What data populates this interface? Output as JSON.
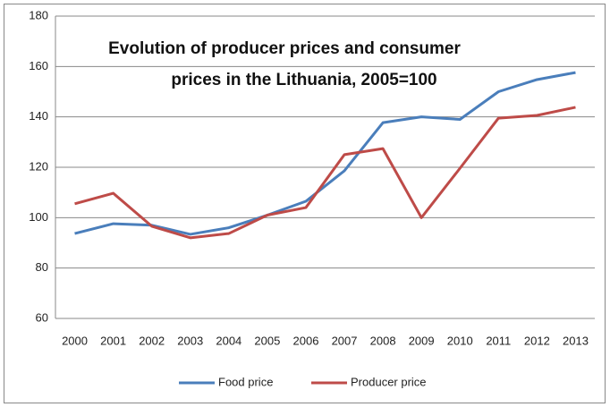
{
  "chart_data": {
    "type": "line",
    "title": [
      "Evolution of producer prices and consumer",
      "prices in the Lithuania, 2005=100"
    ],
    "categories": [
      "2000",
      "2001",
      "2002",
      "2003",
      "2004",
      "2005",
      "2006",
      "2007",
      "2008",
      "2009",
      "2010",
      "2011",
      "2012",
      "2013"
    ],
    "series": [
      {
        "name": "Food price",
        "color": "#4a7ebb",
        "values": [
          93.7,
          97.6,
          97,
          93.4,
          96,
          101,
          106.5,
          118.6,
          137.7,
          140,
          139,
          150,
          154.8,
          157.6
        ]
      },
      {
        "name": "Producer price",
        "color": "#be4b48",
        "values": [
          105.5,
          109.7,
          96.6,
          92,
          93.7,
          101,
          104,
          125,
          127.4,
          100,
          119.6,
          139.5,
          140.6,
          143.8
        ]
      }
    ],
    "ylim": [
      60,
      180
    ],
    "yticks": [
      60,
      80,
      100,
      120,
      140,
      160,
      180
    ],
    "grid": true,
    "legend": "bottom"
  }
}
